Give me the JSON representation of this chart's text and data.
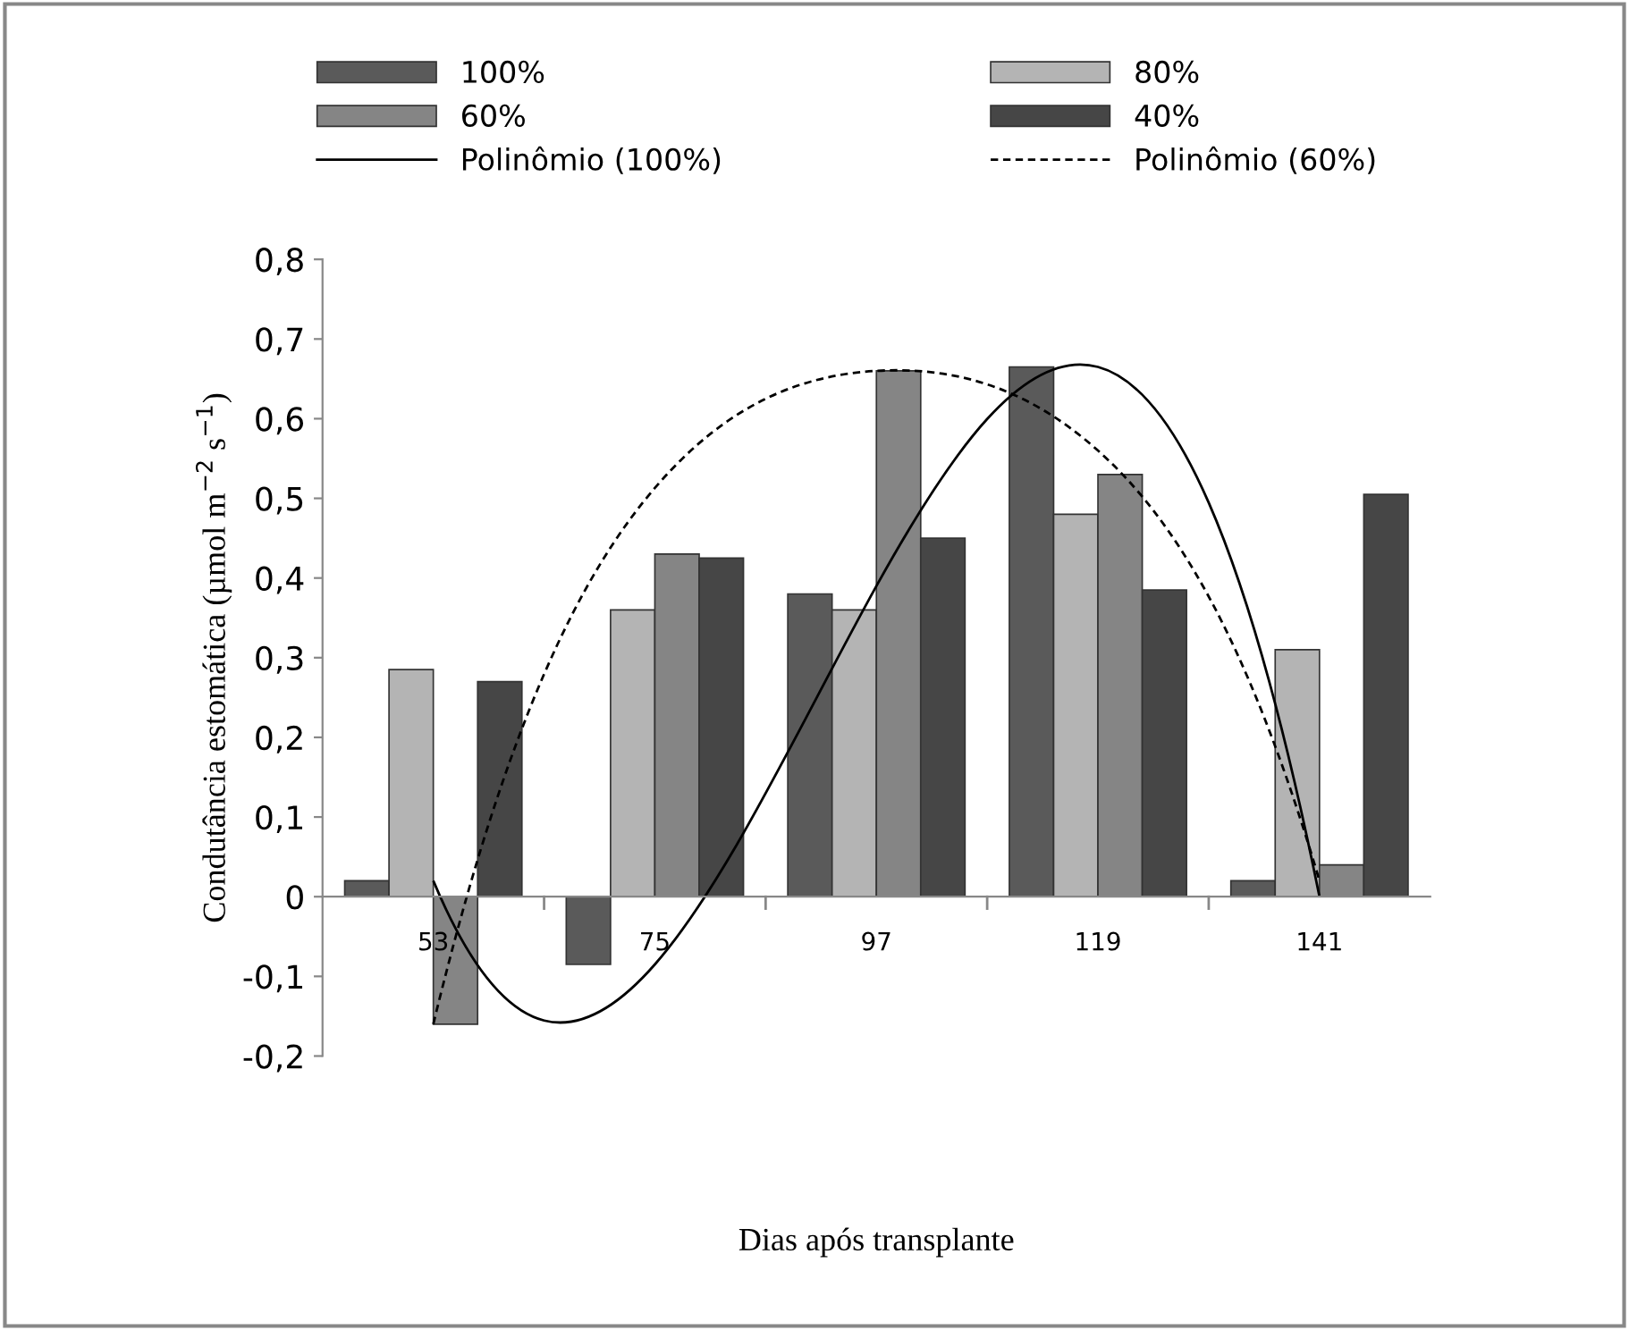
{
  "chart_data": {
    "type": "bar",
    "xlabel": "Dias após transplante",
    "ylabel": "Condutância estomática (µmol m$^{−2}$ s$^{−1}$)",
    "categories": [
      "53",
      "75",
      "97",
      "119",
      "141"
    ],
    "series": [
      {
        "name": "100%",
        "color": "#5a5a5a",
        "values": [
          0.02,
          -0.085,
          0.38,
          0.665,
          0.02
        ]
      },
      {
        "name": "80%",
        "color": "#b4b4b4",
        "values": [
          0.285,
          0.36,
          0.36,
          0.48,
          0.31
        ]
      },
      {
        "name": "60%",
        "color": "#858585",
        "values": [
          -0.16,
          0.43,
          0.66,
          0.53,
          0.04
        ]
      },
      {
        "name": "40%",
        "color": "#464646",
        "values": [
          0.27,
          0.425,
          0.45,
          0.385,
          0.505
        ]
      },
      {
        "name": "Polinômio (100%)",
        "type": "line",
        "line_style": "solid",
        "color": "#000000",
        "values": [
          0.02,
          -0.085,
          0.39,
          0.665,
          0.0
        ]
      },
      {
        "name": "Polinômio (60%)",
        "type": "line",
        "line_style": "dashed",
        "color": "#000000",
        "values": [
          -0.16,
          0.513,
          0.66,
          0.56,
          0.02
        ]
      }
    ],
    "ylim": [
      -0.2,
      0.8
    ],
    "yticks": [
      {
        "value": -0.2,
        "label": "-0,2"
      },
      {
        "value": -0.1,
        "label": "-0,1"
      },
      {
        "value": 0,
        "label": "0"
      },
      {
        "value": 0.1,
        "label": "0,1"
      },
      {
        "value": 0.2,
        "label": "0,2"
      },
      {
        "value": 0.3,
        "label": "0,3"
      },
      {
        "value": 0.4,
        "label": "0,4"
      },
      {
        "value": 0.5,
        "label": "0,5"
      },
      {
        "value": 0.6,
        "label": "0,6"
      },
      {
        "value": 0.7,
        "label": "0,7"
      },
      {
        "value": 0.8,
        "label": "0,8"
      }
    ],
    "legend": "top"
  }
}
